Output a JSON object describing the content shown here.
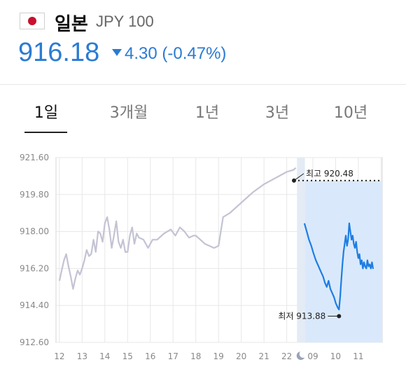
{
  "header": {
    "country": "일본",
    "currency": "JPY 100",
    "price": "916.18",
    "change": "4.30 (-0.47%)",
    "flag_icon": "japan-flag-icon",
    "accent_color": "#2b7bd3"
  },
  "tabs": [
    {
      "label": "1일",
      "active": true
    },
    {
      "label": "3개월",
      "active": false
    },
    {
      "label": "1년",
      "active": false
    },
    {
      "label": "3년",
      "active": false
    },
    {
      "label": "10년",
      "active": false
    }
  ],
  "chart_data": {
    "type": "line",
    "ylim": [
      912.6,
      921.6
    ],
    "y_ticks": [
      "921.60",
      "919.80",
      "918.00",
      "916.20",
      "914.40",
      "912.60"
    ],
    "x_ticks": [
      "12",
      "13",
      "14",
      "15",
      "16",
      "17",
      "18",
      "19",
      "20",
      "21",
      "22",
      "09",
      "10",
      "11"
    ],
    "day_change_marker": "moon-icon",
    "series": [
      {
        "segment": "previous",
        "color": "#c3c3d4",
        "x": [
          12.0,
          12.1,
          12.2,
          12.3,
          12.4,
          12.5,
          12.6,
          12.7,
          12.8,
          12.9,
          13.0,
          13.1,
          13.2,
          13.3,
          13.4,
          13.5,
          13.6,
          13.7,
          13.8,
          13.9,
          14.0,
          14.1,
          14.2,
          14.3,
          14.4,
          14.5,
          14.6,
          14.7,
          14.8,
          14.9,
          15.0,
          15.1,
          15.2,
          15.3,
          15.4,
          15.5,
          15.7,
          15.9,
          16.1,
          16.3,
          16.6,
          16.9,
          17.1,
          17.3,
          17.5,
          17.7,
          17.9,
          18.0,
          18.2,
          18.4,
          18.6,
          18.8,
          19.0,
          19.2,
          19.5,
          20.0,
          20.5,
          21.0,
          21.5,
          22.0,
          22.3,
          22.4
        ],
        "y": [
          915.6,
          916.1,
          916.6,
          916.9,
          916.3,
          915.8,
          915.2,
          915.7,
          916.1,
          915.9,
          916.2,
          916.6,
          917.1,
          916.8,
          916.9,
          917.6,
          917.0,
          918.0,
          917.9,
          917.5,
          918.4,
          918.7,
          918.1,
          917.2,
          917.8,
          918.5,
          917.5,
          917.2,
          917.6,
          917.0,
          917.0,
          917.8,
          918.2,
          917.4,
          917.9,
          917.7,
          917.6,
          917.2,
          917.6,
          917.6,
          917.9,
          918.1,
          917.8,
          918.2,
          918.0,
          917.7,
          917.8,
          917.8,
          917.6,
          917.4,
          917.3,
          917.2,
          917.3,
          918.7,
          918.9,
          919.4,
          919.9,
          920.3,
          920.6,
          920.9,
          921.0,
          921.1
        ]
      },
      {
        "segment": "today",
        "color": "#1e7de3",
        "x": [
          22.78,
          22.88,
          22.98,
          23.08,
          23.16,
          23.22,
          23.28,
          23.36,
          23.44,
          23.52,
          23.6,
          23.68,
          23.76,
          23.84,
          23.92,
          24.0,
          24.08,
          24.16,
          24.24,
          24.3,
          24.35,
          24.4,
          24.45,
          24.5,
          24.55,
          24.6,
          24.65,
          24.7,
          24.75,
          24.8,
          24.85,
          24.9,
          24.95,
          25.0,
          25.05,
          25.1,
          25.15,
          25.2,
          25.25,
          25.3,
          25.35,
          25.4,
          25.45,
          25.5,
          25.55,
          25.6,
          25.65,
          25.7,
          25.75,
          25.8
        ],
        "y": [
          918.4,
          918.0,
          917.6,
          917.3,
          917.0,
          916.8,
          916.6,
          916.4,
          916.2,
          916.0,
          915.8,
          915.5,
          915.3,
          915.6,
          915.2,
          915.0,
          914.8,
          914.5,
          914.3,
          914.2,
          914.8,
          915.6,
          916.4,
          917.0,
          917.4,
          917.8,
          917.3,
          917.6,
          918.4,
          918.0,
          917.6,
          917.8,
          917.4,
          917.2,
          917.5,
          917.0,
          916.7,
          916.9,
          916.4,
          916.6,
          916.2,
          916.5,
          916.3,
          916.2,
          916.6,
          916.3,
          916.4,
          916.2,
          916.5,
          916.18
        ]
      }
    ],
    "annotations": [
      {
        "label": "최고 920.48",
        "kind": "high"
      },
      {
        "label": "최저 913.88",
        "kind": "low"
      }
    ]
  }
}
